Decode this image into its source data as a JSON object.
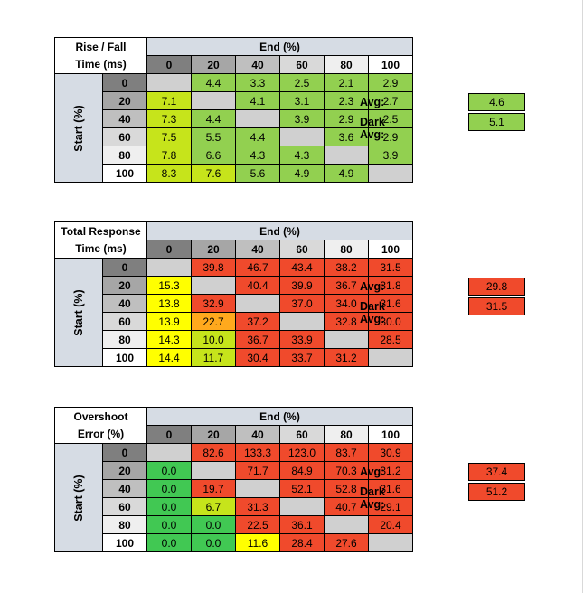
{
  "colors": {
    "header_blue": "#d6dce4",
    "diag_gray": "#d0d0d0",
    "shade_0": "#7f7f7f",
    "shade_20": "#a6a6a6",
    "shade_40": "#bfbfbf",
    "shade_60": "#d9d9d9",
    "shade_80": "#efefef",
    "shade_100": "#ffffff",
    "green": "#92d050",
    "yellow_green": "#c6e41b",
    "yellow": "#ffff00",
    "orange": "#ffa91d",
    "red": "#f04a2c",
    "bright_green": "#41c853"
  },
  "tables": [
    {
      "title_line1": "Rise / Fall",
      "title_line2": "Time (ms)",
      "col_header": "End (%)",
      "row_header": "Start (%)",
      "columns": [
        "0",
        "20",
        "40",
        "60",
        "80",
        "100"
      ],
      "rows": [
        {
          "label": "0",
          "values": [
            "",
            "4.4",
            "3.3",
            "2.5",
            "2.1",
            "2.9"
          ],
          "colors": [
            "diag",
            "green",
            "green",
            "green",
            "green",
            "green"
          ]
        },
        {
          "label": "20",
          "values": [
            "7.1",
            "",
            "4.1",
            "3.1",
            "2.3",
            "2.7"
          ],
          "colors": [
            "yellow_green",
            "diag",
            "green",
            "green",
            "green",
            "green"
          ]
        },
        {
          "label": "40",
          "values": [
            "7.3",
            "4.4",
            "",
            "3.9",
            "2.9",
            "2.5"
          ],
          "colors": [
            "yellow_green",
            "green",
            "diag",
            "green",
            "green",
            "green"
          ]
        },
        {
          "label": "60",
          "values": [
            "7.5",
            "5.5",
            "4.4",
            "",
            "3.6",
            "2.9"
          ],
          "colors": [
            "yellow_green",
            "green",
            "green",
            "diag",
            "green",
            "green"
          ]
        },
        {
          "label": "80",
          "values": [
            "7.8",
            "6.6",
            "4.3",
            "4.3",
            "",
            "3.9"
          ],
          "colors": [
            "yellow_green",
            "green",
            "green",
            "green",
            "diag",
            "green"
          ]
        },
        {
          "label": "100",
          "values": [
            "8.3",
            "7.6",
            "5.6",
            "4.9",
            "4.9",
            ""
          ],
          "colors": [
            "yellow_green",
            "yellow_green",
            "green",
            "green",
            "green",
            "diag"
          ]
        }
      ],
      "avg_label": "Avg:",
      "avg_value": "4.6",
      "avg_color": "green",
      "dark_avg_label": "Dark Avg:",
      "dark_avg_value": "5.1",
      "dark_avg_color": "green"
    },
    {
      "title_line1": "Total Response",
      "title_line2": "Time (ms)",
      "col_header": "End (%)",
      "row_header": "Start (%)",
      "columns": [
        "0",
        "20",
        "40",
        "60",
        "80",
        "100"
      ],
      "rows": [
        {
          "label": "0",
          "values": [
            "",
            "39.8",
            "46.7",
            "43.4",
            "38.2",
            "31.5"
          ],
          "colors": [
            "diag",
            "red",
            "red",
            "red",
            "red",
            "red"
          ]
        },
        {
          "label": "20",
          "values": [
            "15.3",
            "",
            "40.4",
            "39.9",
            "36.7",
            "31.8"
          ],
          "colors": [
            "yellow",
            "diag",
            "red",
            "red",
            "red",
            "red"
          ]
        },
        {
          "label": "40",
          "values": [
            "13.8",
            "32.9",
            "",
            "37.0",
            "34.0",
            "31.6"
          ],
          "colors": [
            "yellow",
            "red",
            "diag",
            "red",
            "red",
            "red"
          ]
        },
        {
          "label": "60",
          "values": [
            "13.9",
            "22.7",
            "37.2",
            "",
            "32.8",
            "30.0"
          ],
          "colors": [
            "yellow",
            "orange",
            "red",
            "diag",
            "red",
            "red"
          ]
        },
        {
          "label": "80",
          "values": [
            "14.3",
            "10.0",
            "36.7",
            "33.9",
            "",
            "28.5"
          ],
          "colors": [
            "yellow",
            "yellow_green",
            "red",
            "red",
            "diag",
            "red"
          ]
        },
        {
          "label": "100",
          "values": [
            "14.4",
            "11.7",
            "30.4",
            "33.7",
            "31.2",
            ""
          ],
          "colors": [
            "yellow",
            "yellow_green",
            "red",
            "red",
            "red",
            "diag"
          ]
        }
      ],
      "avg_label": "Avg:",
      "avg_value": "29.8",
      "avg_color": "red",
      "dark_avg_label": "Dark Avg:",
      "dark_avg_value": "31.5",
      "dark_avg_color": "red"
    },
    {
      "title_line1": "Overshoot",
      "title_line2": "Error (%)",
      "col_header": "End (%)",
      "row_header": "Start (%)",
      "columns": [
        "0",
        "20",
        "40",
        "60",
        "80",
        "100"
      ],
      "rows": [
        {
          "label": "0",
          "values": [
            "",
            "82.6",
            "133.3",
            "123.0",
            "83.7",
            "30.9"
          ],
          "colors": [
            "diag",
            "red",
            "red",
            "red",
            "red",
            "red"
          ]
        },
        {
          "label": "20",
          "values": [
            "0.0",
            "",
            "71.7",
            "84.9",
            "70.3",
            "31.2"
          ],
          "colors": [
            "bright_green",
            "diag",
            "red",
            "red",
            "red",
            "red"
          ]
        },
        {
          "label": "40",
          "values": [
            "0.0",
            "19.7",
            "",
            "52.1",
            "52.8",
            "31.6"
          ],
          "colors": [
            "bright_green",
            "red",
            "diag",
            "red",
            "red",
            "red"
          ]
        },
        {
          "label": "60",
          "values": [
            "0.0",
            "6.7",
            "31.3",
            "",
            "40.7",
            "29.1"
          ],
          "colors": [
            "bright_green",
            "yellow_green",
            "red",
            "diag",
            "red",
            "red"
          ]
        },
        {
          "label": "80",
          "values": [
            "0.0",
            "0.0",
            "22.5",
            "36.1",
            "",
            "20.4"
          ],
          "colors": [
            "bright_green",
            "bright_green",
            "red",
            "red",
            "diag",
            "red"
          ]
        },
        {
          "label": "100",
          "values": [
            "0.0",
            "0.0",
            "11.6",
            "28.4",
            "27.6",
            ""
          ],
          "colors": [
            "bright_green",
            "bright_green",
            "yellow",
            "red",
            "red",
            "diag"
          ]
        }
      ],
      "avg_label": "Avg:",
      "avg_value": "37.4",
      "avg_color": "red",
      "dark_avg_label": "Dark Avg:",
      "dark_avg_value": "51.2",
      "dark_avg_color": "red"
    }
  ]
}
